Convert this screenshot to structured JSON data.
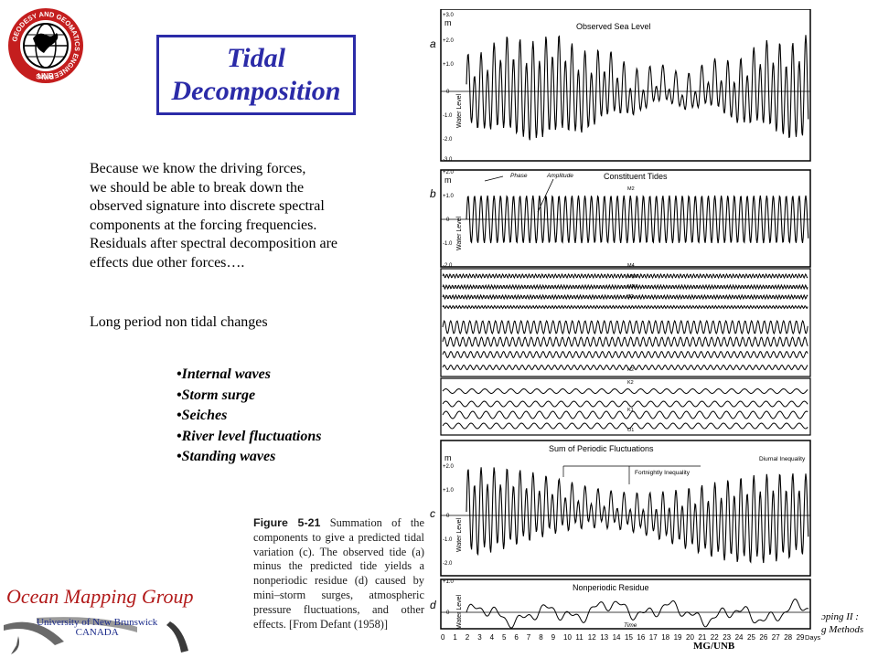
{
  "logo": {
    "ring_text": "GEODESY AND GEOMATICS ENGINEERING",
    "bottom_text": "UNB"
  },
  "title": {
    "line1": "Tidal",
    "line2": "Decomposition"
  },
  "paragraph": [
    "Because we know the driving forces,",
    "we should be able to break down the",
    "observed signature into discrete spectral",
    "components at the forcing frequencies.",
    "Residuals after spectral decomposition are",
    "effects due other forces…."
  ],
  "subheading": "Long period non tidal changes",
  "bullets": [
    "•Internal waves",
    "•Storm surge",
    "•Seiches",
    "•River level fluctuations",
    "•Standing waves"
  ],
  "figure": {
    "panel_a": {
      "letter": "a",
      "title": "Observed Sea Level",
      "unit": "m",
      "ylabel": "Water Level",
      "ticks": [
        "+3.0",
        "+2.0",
        "+1.0",
        "0",
        "-1.0",
        "-2.0",
        "-3.0"
      ]
    },
    "panel_b": {
      "letter": "b",
      "title": "Constituent Tides",
      "unit": "m",
      "ylabel": "Water Level",
      "phase_label": "Phase",
      "amplitude_label": "Amplitude",
      "ticks": [
        "+2.0",
        "+1.0",
        "0",
        "-1.0",
        "-2.0"
      ]
    },
    "constituents": [
      "M2",
      "M4",
      "MS4",
      "MN4",
      "S2",
      "N2",
      "K2",
      "K1",
      "O1"
    ],
    "panel_c": {
      "letter": "c",
      "title": "Sum of Periodic Fluctuations",
      "unit": "m",
      "ylabel": "Water Level",
      "fortnightly": "Fortnightly Inequality",
      "diurnal": "Diurnal Inequality",
      "ticks": [
        "+2.0",
        "+1.0",
        "0",
        "-1.0",
        "-2.0"
      ]
    },
    "panel_d": {
      "letter": "d",
      "title": "Nonperiodic Residue",
      "unit": "m",
      "ylabel": "Water Level",
      "ticks": [
        "+1.0",
        "0"
      ],
      "time_label": "Time",
      "days_label": "Days"
    }
  },
  "caption": {
    "figure_label": "Figure 5-21",
    "text": "Summation of the components to give a predicted tidal variation (c). The observed tide (a) minus the predicted tide yields a nonperiodic residue (d) caused by mini–storm surges, atmospheric pressure fluctuations, and other effects. [From Defant (1958)]"
  },
  "omg": {
    "title": "Ocean Mapping Group",
    "university": "University of New Brunswick",
    "country": "CANADA"
  },
  "footer": {
    "line1": "ɔping II :",
    "line2": "g Methods",
    "credit": "MG/UNB"
  },
  "colors": {
    "title_blue": "#2b2ba8",
    "omg_red": "#b21a1a",
    "omg_blue": "#1a2a8a"
  }
}
